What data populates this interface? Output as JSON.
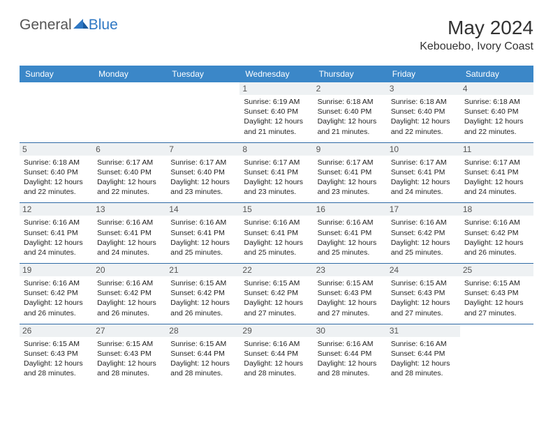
{
  "logo": {
    "general": "General",
    "blue": "Blue"
  },
  "title": {
    "month": "May 2024",
    "location": "Kebouebo, Ivory Coast"
  },
  "colors": {
    "header_bg": "#3b87c8",
    "header_text": "#ffffff",
    "daynum_bg": "#eef1f3",
    "daynum_text": "#555555",
    "rule": "#2f6aa6",
    "logo_blue": "#2f78c4"
  },
  "weekdays": [
    "Sunday",
    "Monday",
    "Tuesday",
    "Wednesday",
    "Thursday",
    "Friday",
    "Saturday"
  ],
  "weeks": [
    [
      null,
      null,
      null,
      {
        "n": "1",
        "sr": "6:19 AM",
        "ss": "6:40 PM",
        "dl": "12 hours and 21 minutes."
      },
      {
        "n": "2",
        "sr": "6:18 AM",
        "ss": "6:40 PM",
        "dl": "12 hours and 21 minutes."
      },
      {
        "n": "3",
        "sr": "6:18 AM",
        "ss": "6:40 PM",
        "dl": "12 hours and 22 minutes."
      },
      {
        "n": "4",
        "sr": "6:18 AM",
        "ss": "6:40 PM",
        "dl": "12 hours and 22 minutes."
      }
    ],
    [
      {
        "n": "5",
        "sr": "6:18 AM",
        "ss": "6:40 PM",
        "dl": "12 hours and 22 minutes."
      },
      {
        "n": "6",
        "sr": "6:17 AM",
        "ss": "6:40 PM",
        "dl": "12 hours and 22 minutes."
      },
      {
        "n": "7",
        "sr": "6:17 AM",
        "ss": "6:40 PM",
        "dl": "12 hours and 23 minutes."
      },
      {
        "n": "8",
        "sr": "6:17 AM",
        "ss": "6:41 PM",
        "dl": "12 hours and 23 minutes."
      },
      {
        "n": "9",
        "sr": "6:17 AM",
        "ss": "6:41 PM",
        "dl": "12 hours and 23 minutes."
      },
      {
        "n": "10",
        "sr": "6:17 AM",
        "ss": "6:41 PM",
        "dl": "12 hours and 24 minutes."
      },
      {
        "n": "11",
        "sr": "6:17 AM",
        "ss": "6:41 PM",
        "dl": "12 hours and 24 minutes."
      }
    ],
    [
      {
        "n": "12",
        "sr": "6:16 AM",
        "ss": "6:41 PM",
        "dl": "12 hours and 24 minutes."
      },
      {
        "n": "13",
        "sr": "6:16 AM",
        "ss": "6:41 PM",
        "dl": "12 hours and 24 minutes."
      },
      {
        "n": "14",
        "sr": "6:16 AM",
        "ss": "6:41 PM",
        "dl": "12 hours and 25 minutes."
      },
      {
        "n": "15",
        "sr": "6:16 AM",
        "ss": "6:41 PM",
        "dl": "12 hours and 25 minutes."
      },
      {
        "n": "16",
        "sr": "6:16 AM",
        "ss": "6:41 PM",
        "dl": "12 hours and 25 minutes."
      },
      {
        "n": "17",
        "sr": "6:16 AM",
        "ss": "6:42 PM",
        "dl": "12 hours and 25 minutes."
      },
      {
        "n": "18",
        "sr": "6:16 AM",
        "ss": "6:42 PM",
        "dl": "12 hours and 26 minutes."
      }
    ],
    [
      {
        "n": "19",
        "sr": "6:16 AM",
        "ss": "6:42 PM",
        "dl": "12 hours and 26 minutes."
      },
      {
        "n": "20",
        "sr": "6:16 AM",
        "ss": "6:42 PM",
        "dl": "12 hours and 26 minutes."
      },
      {
        "n": "21",
        "sr": "6:15 AM",
        "ss": "6:42 PM",
        "dl": "12 hours and 26 minutes."
      },
      {
        "n": "22",
        "sr": "6:15 AM",
        "ss": "6:42 PM",
        "dl": "12 hours and 27 minutes."
      },
      {
        "n": "23",
        "sr": "6:15 AM",
        "ss": "6:43 PM",
        "dl": "12 hours and 27 minutes."
      },
      {
        "n": "24",
        "sr": "6:15 AM",
        "ss": "6:43 PM",
        "dl": "12 hours and 27 minutes."
      },
      {
        "n": "25",
        "sr": "6:15 AM",
        "ss": "6:43 PM",
        "dl": "12 hours and 27 minutes."
      }
    ],
    [
      {
        "n": "26",
        "sr": "6:15 AM",
        "ss": "6:43 PM",
        "dl": "12 hours and 28 minutes."
      },
      {
        "n": "27",
        "sr": "6:15 AM",
        "ss": "6:43 PM",
        "dl": "12 hours and 28 minutes."
      },
      {
        "n": "28",
        "sr": "6:15 AM",
        "ss": "6:44 PM",
        "dl": "12 hours and 28 minutes."
      },
      {
        "n": "29",
        "sr": "6:16 AM",
        "ss": "6:44 PM",
        "dl": "12 hours and 28 minutes."
      },
      {
        "n": "30",
        "sr": "6:16 AM",
        "ss": "6:44 PM",
        "dl": "12 hours and 28 minutes."
      },
      {
        "n": "31",
        "sr": "6:16 AM",
        "ss": "6:44 PM",
        "dl": "12 hours and 28 minutes."
      },
      null
    ]
  ],
  "labels": {
    "sunrise": "Sunrise:",
    "sunset": "Sunset:",
    "daylight": "Daylight:"
  }
}
